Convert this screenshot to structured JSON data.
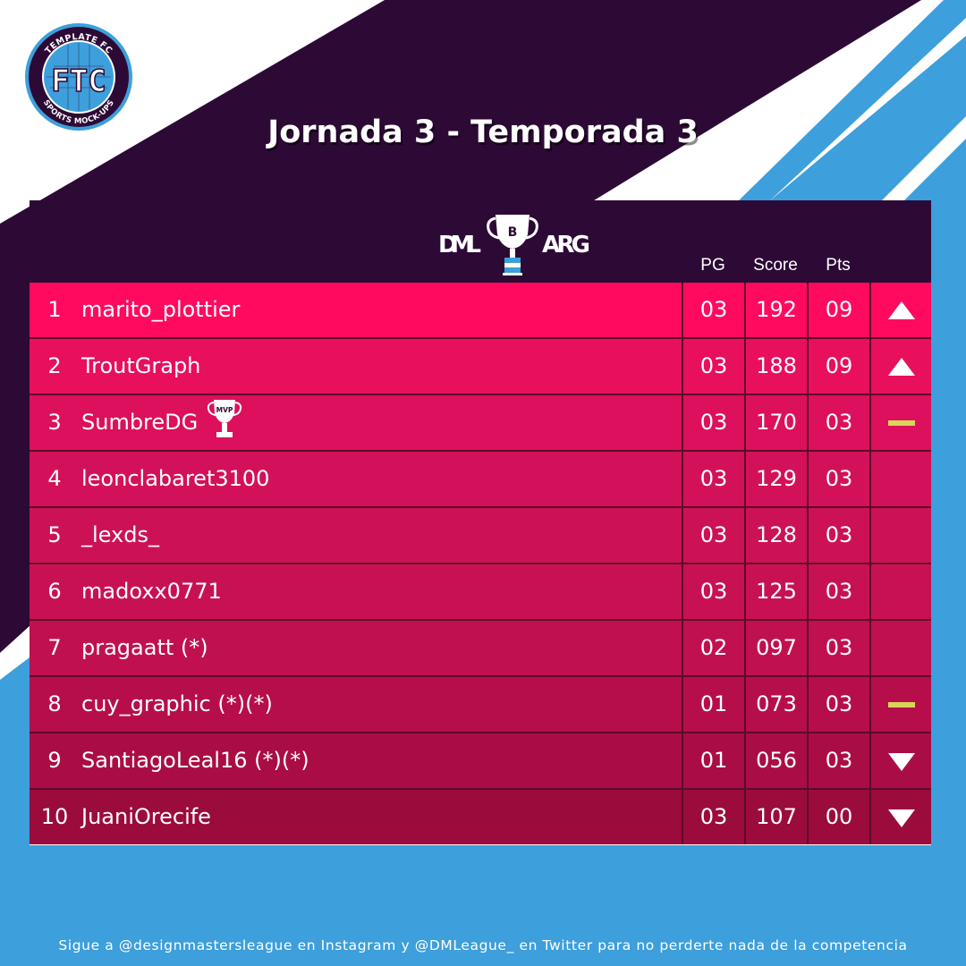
{
  "colors": {
    "dark_purple": "#2d0a35",
    "sky_blue": "#3d9fdb",
    "white": "#ffffff",
    "neutral_marker": "#d9d45a",
    "row_gradient": [
      "#ff0a5e",
      "#e80f5d",
      "#dc105c",
      "#d3115a",
      "#cc1157",
      "#c81154",
      "#c11050",
      "#b60e4b",
      "#aa0d45",
      "#9b0b3c"
    ]
  },
  "logo": {
    "top_text": "TEMPLATE FC",
    "bottom_text": "SPORTS MOCK-UPS",
    "monogram": "FTC"
  },
  "title": "Jornada 3 - Temporada 3",
  "league": {
    "left": "DML",
    "right": "ARG",
    "cup_letter": "B"
  },
  "columns": {
    "pg": "PG",
    "score": "Score",
    "pts": "Pts"
  },
  "mvp_label": "MVP",
  "standings": [
    {
      "pos": "1",
      "name": "marito_plottier",
      "pg": "03",
      "score": "192",
      "pts": "09",
      "trend": "up",
      "mvp": false
    },
    {
      "pos": "2",
      "name": "TroutGraph",
      "pg": "03",
      "score": "188",
      "pts": "09",
      "trend": "up",
      "mvp": false
    },
    {
      "pos": "3",
      "name": "SumbreDG",
      "pg": "03",
      "score": "170",
      "pts": "03",
      "trend": "same",
      "mvp": true
    },
    {
      "pos": "4",
      "name": "leonclabaret3100",
      "pg": "03",
      "score": "129",
      "pts": "03",
      "trend": "none",
      "mvp": false
    },
    {
      "pos": "5",
      "name": "_lexds_",
      "pg": "03",
      "score": "128",
      "pts": "03",
      "trend": "none",
      "mvp": false
    },
    {
      "pos": "6",
      "name": "madoxx0771",
      "pg": "03",
      "score": "125",
      "pts": "03",
      "trend": "none",
      "mvp": false
    },
    {
      "pos": "7",
      "name": "pragaatt (*)",
      "pg": "02",
      "score": "097",
      "pts": "03",
      "trend": "none",
      "mvp": false
    },
    {
      "pos": "8",
      "name": "cuy_graphic (*)(*)",
      "pg": "01",
      "score": "073",
      "pts": "03",
      "trend": "same",
      "mvp": false
    },
    {
      "pos": "9",
      "name": "SantiagoLeal16 (*)(*)",
      "pg": "01",
      "score": "056",
      "pts": "03",
      "trend": "down",
      "mvp": false
    },
    {
      "pos": "10",
      "name": "JuaniOrecife",
      "pg": "03",
      "score": "107",
      "pts": "00",
      "trend": "down",
      "mvp": false
    }
  ],
  "footer": "Sigue a @designmastersleague en Instagram y @DMLeague_ en Twitter para no perderte nada de la competencia"
}
